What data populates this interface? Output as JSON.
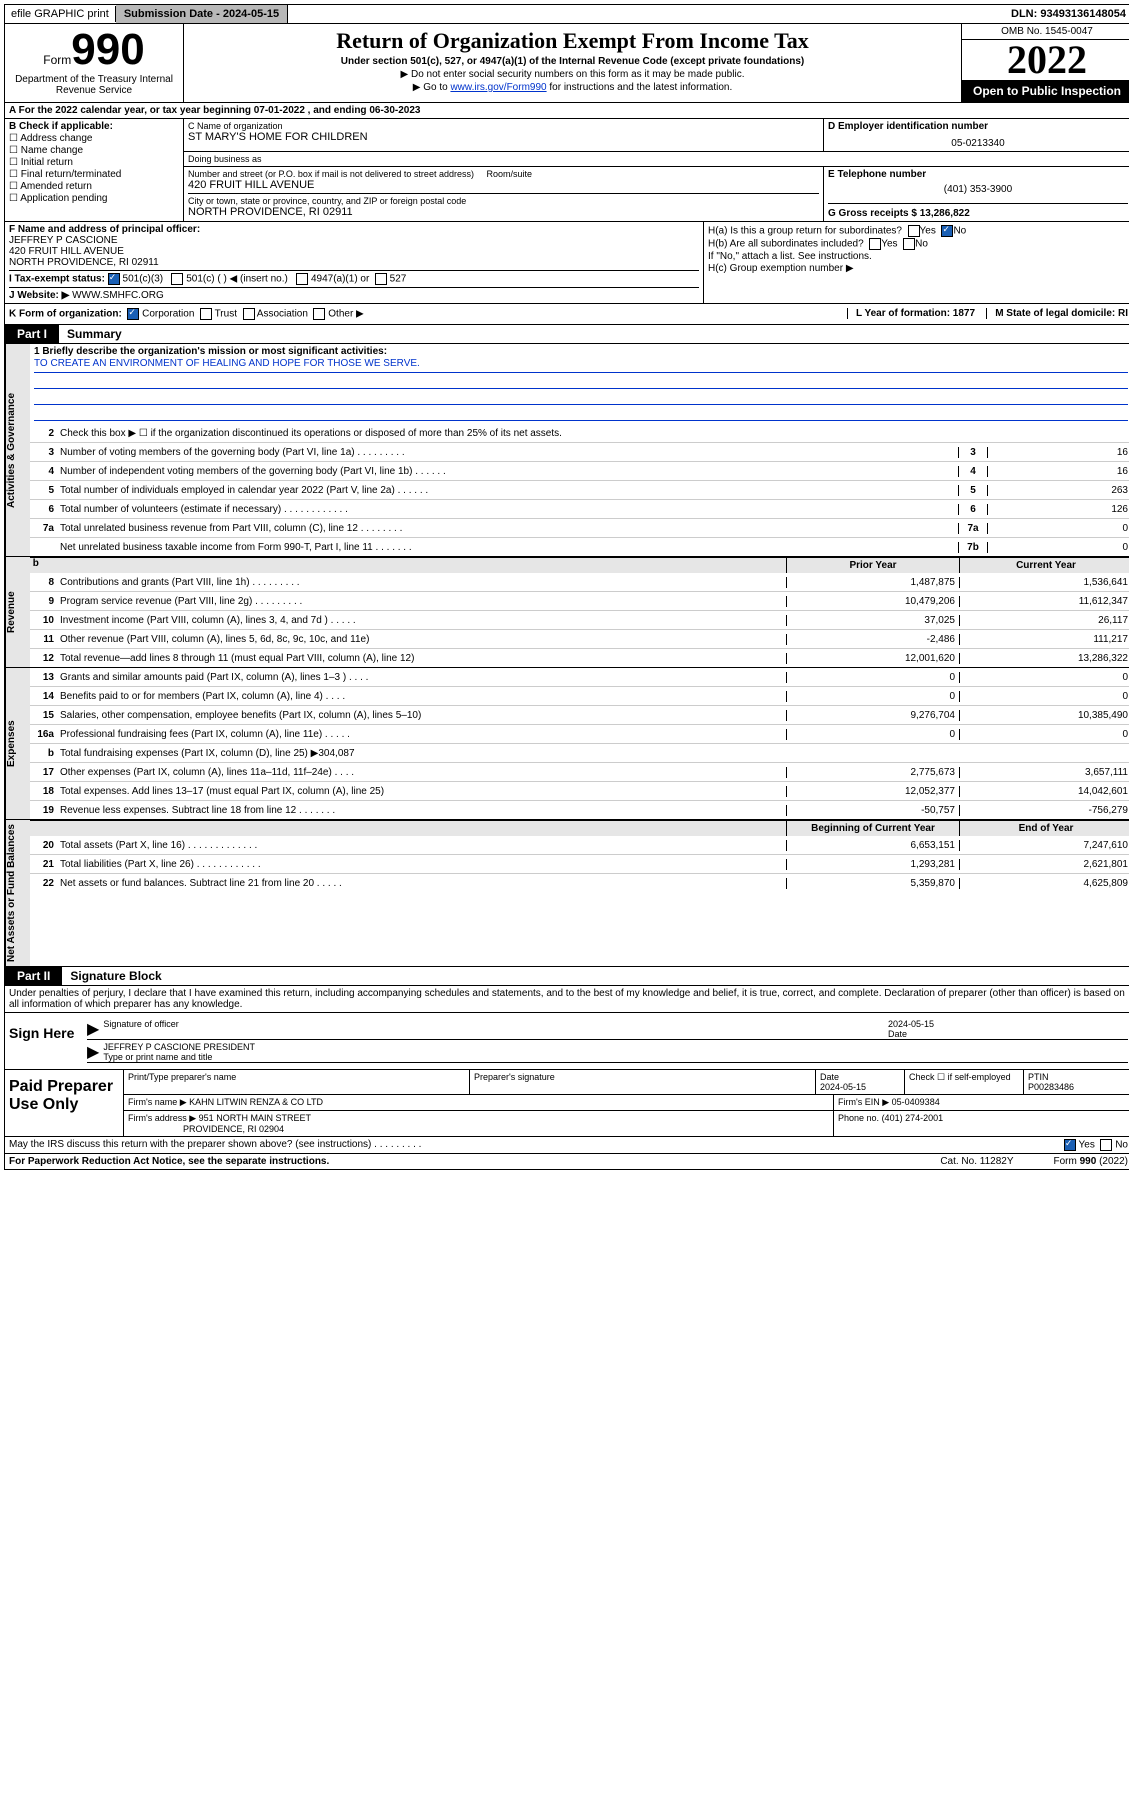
{
  "top": {
    "efile": "efile GRAPHIC print",
    "submission": "Submission Date - 2024-05-15",
    "dln": "DLN: 93493136148054"
  },
  "header": {
    "form_prefix": "Form",
    "form_number": "990",
    "dept": "Department of the Treasury Internal Revenue Service",
    "title": "Return of Organization Exempt From Income Tax",
    "subtitle": "Under section 501(c), 527, or 4947(a)(1) of the Internal Revenue Code (except private foundations)",
    "note1": "▶ Do not enter social security numbers on this form as it may be made public.",
    "note2_pre": "▶ Go to ",
    "note2_link": "www.irs.gov/Form990",
    "note2_post": " for instructions and the latest information.",
    "omb": "OMB No. 1545-0047",
    "year": "2022",
    "open_public": "Open to Public Inspection"
  },
  "row_a": "A For the 2022 calendar year, or tax year beginning 07-01-2022   , and ending 06-30-2023",
  "b": {
    "label": "B Check if applicable:",
    "opts": [
      "Address change",
      "Name change",
      "Initial return",
      "Final return/terminated",
      "Amended return",
      "Application pending"
    ]
  },
  "c": {
    "name_lbl": "C Name of organization",
    "name": "ST MARY'S HOME FOR CHILDREN",
    "dba_lbl": "Doing business as",
    "dba": "",
    "addr_lbl": "Number and street (or P.O. box if mail is not delivered to street address)",
    "room_lbl": "Room/suite",
    "addr": "420 FRUIT HILL AVENUE",
    "city_lbl": "City or town, state or province, country, and ZIP or foreign postal code",
    "city": "NORTH PROVIDENCE, RI  02911"
  },
  "d": {
    "lbl": "D Employer identification number",
    "val": "05-0213340"
  },
  "e": {
    "lbl": "E Telephone number",
    "val": "(401) 353-3900"
  },
  "g": "G Gross receipts $ 13,286,822",
  "f": {
    "lbl": "F Name and address of principal officer:",
    "name": "JEFFREY P CASCIONE",
    "addr1": "420 FRUIT HILL AVENUE",
    "addr2": "NORTH PROVIDENCE, RI  02911"
  },
  "h": {
    "a": "H(a)  Is this a group return for subordinates?",
    "a_yes": "Yes",
    "a_no": "No",
    "b": "H(b)  Are all subordinates included?",
    "b_yes": "Yes",
    "b_no": "No",
    "b_note": "If \"No,\" attach a list. See instructions.",
    "c": "H(c)  Group exemption number ▶"
  },
  "i": {
    "lbl": "I   Tax-exempt status:",
    "o1": "501(c)(3)",
    "o2": "501(c) (  ) ◀ (insert no.)",
    "o3": "4947(a)(1) or",
    "o4": "527"
  },
  "j": {
    "lbl": "J   Website: ▶ ",
    "val": "WWW.SMHFC.ORG"
  },
  "k": {
    "lbl": "K Form of organization:",
    "o1": "Corporation",
    "o2": "Trust",
    "o3": "Association",
    "o4": "Other ▶",
    "l": "L Year of formation: 1877",
    "m": "M State of legal domicile: RI"
  },
  "part1": {
    "tab": "Part I",
    "title": "Summary"
  },
  "mission": {
    "lbl": "1  Briefly describe the organization's mission or most significant activities:",
    "text": "TO CREATE AN ENVIRONMENT OF HEALING AND HOPE FOR THOSE WE SERVE."
  },
  "gov_lines": [
    {
      "n": "2",
      "d": "Check this box ▶ ☐  if the organization discontinued its operations or disposed of more than 25% of its net assets.",
      "b": "",
      "v": ""
    },
    {
      "n": "3",
      "d": "Number of voting members of the governing body (Part VI, line 1a)  .    .    .    .    .    .    .    .    .",
      "b": "3",
      "v": "16"
    },
    {
      "n": "4",
      "d": "Number of independent voting members of the governing body (Part VI, line 1b)  .    .    .    .    .    .",
      "b": "4",
      "v": "16"
    },
    {
      "n": "5",
      "d": "Total number of individuals employed in calendar year 2022 (Part V, line 2a)  .    .    .    .    .    .",
      "b": "5",
      "v": "263"
    },
    {
      "n": "6",
      "d": "Total number of volunteers (estimate if necessary)  .    .    .    .    .    .    .    .    .    .    .    .",
      "b": "6",
      "v": "126"
    },
    {
      "n": "7a",
      "d": "Total unrelated business revenue from Part VIII, column (C), line 12  .    .    .    .    .    .    .    .",
      "b": "7a",
      "v": "0"
    },
    {
      "n": "",
      "d": "Net unrelated business taxable income from Form 990-T, Part I, line 11  .    .    .    .    .    .    .",
      "b": "7b",
      "v": "0"
    }
  ],
  "cols": {
    "prior": "Prior Year",
    "current": "Current Year"
  },
  "rev_lines": [
    {
      "n": "8",
      "d": "Contributions and grants (Part VIII, line 1h)  .    .    .    .    .    .    .    .    .",
      "p": "1,487,875",
      "c": "1,536,641"
    },
    {
      "n": "9",
      "d": "Program service revenue (Part VIII, line 2g)  .    .    .    .    .    .    .    .    .",
      "p": "10,479,206",
      "c": "11,612,347"
    },
    {
      "n": "10",
      "d": "Investment income (Part VIII, column (A), lines 3, 4, and 7d )  .    .    .    .    .",
      "p": "37,025",
      "c": "26,117"
    },
    {
      "n": "11",
      "d": "Other revenue (Part VIII, column (A), lines 5, 6d, 8c, 9c, 10c, and 11e)",
      "p": "-2,486",
      "c": "111,217"
    },
    {
      "n": "12",
      "d": "Total revenue—add lines 8 through 11 (must equal Part VIII, column (A), line 12)",
      "p": "12,001,620",
      "c": "13,286,322"
    }
  ],
  "exp_lines": [
    {
      "n": "13",
      "d": "Grants and similar amounts paid (Part IX, column (A), lines 1–3 )  .    .    .    .",
      "p": "0",
      "c": "0"
    },
    {
      "n": "14",
      "d": "Benefits paid to or for members (Part IX, column (A), line 4)  .    .    .    .",
      "p": "0",
      "c": "0"
    },
    {
      "n": "15",
      "d": "Salaries, other compensation, employee benefits (Part IX, column (A), lines 5–10)",
      "p": "9,276,704",
      "c": "10,385,490"
    },
    {
      "n": "16a",
      "d": "Professional fundraising fees (Part IX, column (A), line 11e)  .    .    .    .    .",
      "p": "0",
      "c": "0"
    },
    {
      "n": "b",
      "d": "Total fundraising expenses (Part IX, column (D), line 25) ▶304,087",
      "p": "",
      "c": ""
    },
    {
      "n": "17",
      "d": "Other expenses (Part IX, column (A), lines 11a–11d, 11f–24e)  .    .    .    .",
      "p": "2,775,673",
      "c": "3,657,111"
    },
    {
      "n": "18",
      "d": "Total expenses. Add lines 13–17 (must equal Part IX, column (A), line 25)",
      "p": "12,052,377",
      "c": "14,042,601"
    },
    {
      "n": "19",
      "d": "Revenue less expenses. Subtract line 18 from line 12  .    .    .    .    .    .    .",
      "p": "-50,757",
      "c": "-756,279"
    }
  ],
  "na_cols": {
    "begin": "Beginning of Current Year",
    "end": "End of Year"
  },
  "na_lines": [
    {
      "n": "20",
      "d": "Total assets (Part X, line 16)  .    .    .    .    .    .    .    .    .    .    .    .    .",
      "p": "6,653,151",
      "c": "7,247,610"
    },
    {
      "n": "21",
      "d": "Total liabilities (Part X, line 26)  .    .    .    .    .    .    .    .    .    .    .    .",
      "p": "1,293,281",
      "c": "2,621,801"
    },
    {
      "n": "22",
      "d": "Net assets or fund balances. Subtract line 21 from line 20  .    .    .    .    .",
      "p": "5,359,870",
      "c": "4,625,809"
    }
  ],
  "part2": {
    "tab": "Part II",
    "title": "Signature Block"
  },
  "penalties": "Under penalties of perjury, I declare that I have examined this return, including accompanying schedules and statements, and to the best of my knowledge and belief, it is true, correct, and complete. Declaration of preparer (other than officer) is based on all information of which preparer has any knowledge.",
  "sign": {
    "here": "Sign Here",
    "sig_lbl": "Signature of officer",
    "sig_date": "2024-05-15",
    "date_lbl": "Date",
    "name": "JEFFREY P CASCIONE  PRESIDENT",
    "name_lbl": "Type or print name and title"
  },
  "paid": {
    "title": "Paid Preparer Use Only",
    "h_name": "Print/Type preparer's name",
    "h_sig": "Preparer's signature",
    "h_date": "Date",
    "date": "2024-05-15",
    "h_check": "Check ☐ if self-employed",
    "h_ptin": "PTIN",
    "ptin": "P00283486",
    "firm_lbl": "Firm's name      ▶",
    "firm": "KAHN LITWIN RENZA & CO LTD",
    "ein_lbl": "Firm's EIN ▶",
    "ein": "05-0409384",
    "addr_lbl": "Firm's address ▶",
    "addr1": "951 NORTH MAIN STREET",
    "addr2": "PROVIDENCE, RI  02904",
    "phone_lbl": "Phone no.",
    "phone": "(401) 274-2001"
  },
  "may_discuss": "May the IRS discuss this return with the preparer shown above? (see instructions)  .    .    .    .    .    .    .    .    .",
  "may_yes": "Yes",
  "may_no": "No",
  "footer": {
    "pra": "For Paperwork Reduction Act Notice, see the separate instructions.",
    "cat": "Cat. No. 11282Y",
    "form": "Form 990 (2022)"
  },
  "vtabs": {
    "gov": "Activities & Governance",
    "rev": "Revenue",
    "exp": "Expenses",
    "na": "Net Assets or Fund Balances"
  }
}
